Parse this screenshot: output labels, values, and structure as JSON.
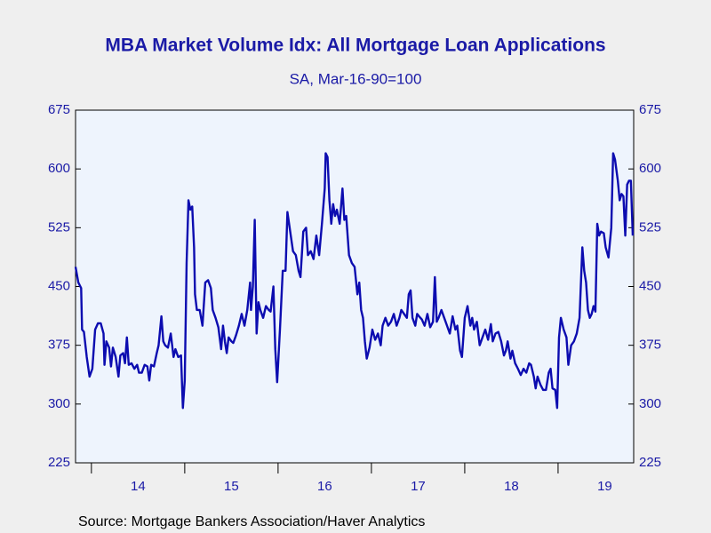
{
  "chart_data": {
    "type": "line",
    "title": "MBA Market Volume Idx: All Mortgage Loan Applications",
    "subtitle": "SA, Mar-16-90=100",
    "source": "Source:  Mortgage Bankers Association/Haver Analytics",
    "color": "#0c0cb0",
    "x": [
      2013.83,
      2013.86,
      2013.89,
      2013.9,
      2013.92,
      2013.95,
      2013.98,
      2014.01,
      2014.04,
      2014.07,
      2014.1,
      2014.13,
      2014.14,
      2014.16,
      2014.19,
      2014.21,
      2014.23,
      2014.26,
      2014.29,
      2014.31,
      2014.34,
      2014.36,
      2014.38,
      2014.4,
      2014.43,
      2014.46,
      2014.49,
      2014.51,
      2014.54,
      2014.57,
      2014.6,
      2014.62,
      2014.64,
      2014.67,
      2014.7,
      2014.72,
      2014.75,
      2014.77,
      2014.79,
      2014.82,
      2014.85,
      2014.88,
      2014.9,
      2014.93,
      2014.96,
      2014.98,
      2015.0,
      2015.02,
      2015.04,
      2015.06,
      2015.08,
      2015.1,
      2015.11,
      2015.13,
      2015.16,
      2015.19,
      2015.22,
      2015.25,
      2015.28,
      2015.3,
      2015.33,
      2015.36,
      2015.39,
      2015.41,
      2015.43,
      2015.45,
      2015.47,
      2015.5,
      2015.52,
      2015.55,
      2015.58,
      2015.61,
      2015.64,
      2015.67,
      2015.7,
      2015.71,
      2015.73,
      2015.75,
      2015.77,
      2015.79,
      2015.81,
      2015.84,
      2015.87,
      2015.9,
      2015.92,
      2015.95,
      2015.97,
      2015.99,
      2016.02,
      2016.05,
      2016.08,
      2016.1,
      2016.13,
      2016.16,
      2016.19,
      2016.22,
      2016.24,
      2016.27,
      2016.3,
      2016.32,
      2016.35,
      2016.38,
      2016.41,
      2016.44,
      2016.47,
      2016.5,
      2016.51,
      2016.53,
      2016.55,
      2016.57,
      2016.59,
      2016.61,
      2016.63,
      2016.66,
      2016.69,
      2016.71,
      2016.73,
      2016.76,
      2016.79,
      2016.82,
      2016.85,
      2016.87,
      2016.89,
      2016.91,
      2016.93,
      2016.95,
      2016.98,
      2017.01,
      2017.04,
      2017.07,
      2017.1,
      2017.12,
      2017.15,
      2017.18,
      2017.21,
      2017.24,
      2017.27,
      2017.3,
      2017.32,
      2017.35,
      2017.38,
      2017.4,
      2017.42,
      2017.44,
      2017.47,
      2017.49,
      2017.51,
      2017.54,
      2017.57,
      2017.6,
      2017.63,
      2017.66,
      2017.68,
      2017.7,
      2017.72,
      2017.75,
      2017.78,
      2017.81,
      2017.84,
      2017.87,
      2017.9,
      2017.92,
      2017.95,
      2017.97,
      2018.0,
      2018.03,
      2018.06,
      2018.08,
      2018.1,
      2018.13,
      2018.16,
      2018.19,
      2018.22,
      2018.25,
      2018.28,
      2018.3,
      2018.33,
      2018.36,
      2018.39,
      2018.42,
      2018.44,
      2018.46,
      2018.49,
      2018.51,
      2018.54,
      2018.57,
      2018.6,
      2018.63,
      2018.66,
      2018.69,
      2018.71,
      2018.74,
      2018.76,
      2018.78,
      2018.81,
      2018.84,
      2018.87,
      2018.9,
      2018.92,
      2018.94,
      2018.97,
      2018.99,
      2019.01,
      2019.03,
      2019.06,
      2019.09,
      2019.11,
      2019.14,
      2019.17,
      2019.2,
      2019.23,
      2019.26,
      2019.28,
      2019.3,
      2019.32,
      2019.34,
      2019.36,
      2019.38,
      2019.4,
      2019.42,
      2019.44,
      2019.46,
      2019.49,
      2019.51,
      2019.54,
      2019.57,
      2019.59,
      2019.61,
      2019.64,
      2019.66,
      2019.68,
      2019.7,
      2019.72,
      2019.74,
      2019.76,
      2019.78,
      2019.8
    ],
    "values": [
      475,
      455,
      448,
      395,
      392,
      360,
      335,
      345,
      395,
      403,
      403,
      390,
      350,
      380,
      372,
      348,
      372,
      360,
      335,
      362,
      365,
      352,
      385,
      350,
      352,
      345,
      350,
      340,
      340,
      350,
      348,
      330,
      350,
      348,
      365,
      375,
      412,
      380,
      375,
      372,
      390,
      360,
      370,
      360,
      362,
      295,
      330,
      480,
      560,
      548,
      552,
      500,
      440,
      420,
      420,
      400,
      455,
      458,
      448,
      420,
      410,
      398,
      370,
      400,
      380,
      365,
      385,
      380,
      378,
      388,
      400,
      415,
      400,
      420,
      455,
      420,
      450,
      535,
      390,
      430,
      420,
      410,
      425,
      420,
      418,
      450,
      370,
      328,
      395,
      470,
      470,
      545,
      520,
      495,
      490,
      470,
      462,
      520,
      525,
      490,
      495,
      485,
      515,
      490,
      530,
      575,
      620,
      615,
      560,
      530,
      555,
      540,
      548,
      530,
      575,
      535,
      540,
      490,
      480,
      475,
      440,
      455,
      420,
      410,
      380,
      358,
      372,
      395,
      382,
      390,
      375,
      400,
      410,
      400,
      405,
      415,
      400,
      410,
      420,
      415,
      410,
      440,
      445,
      410,
      400,
      415,
      412,
      408,
      400,
      415,
      398,
      405,
      462,
      405,
      410,
      420,
      410,
      400,
      390,
      412,
      395,
      400,
      368,
      360,
      410,
      425,
      400,
      410,
      395,
      405,
      375,
      385,
      395,
      382,
      402,
      380,
      390,
      392,
      380,
      362,
      368,
      380,
      358,
      368,
      352,
      345,
      337,
      345,
      340,
      352,
      350,
      335,
      320,
      335,
      325,
      318,
      318,
      340,
      345,
      320,
      318,
      295,
      385,
      410,
      395,
      385,
      350,
      375,
      380,
      390,
      410,
      500,
      470,
      455,
      420,
      410,
      415,
      425,
      418,
      530,
      515,
      520,
      518,
      500,
      487,
      525,
      620,
      612,
      585,
      560,
      568,
      565,
      515,
      580,
      585,
      585,
      515
    ],
    "xlim": [
      2013.83,
      2019.81
    ],
    "xticks": [
      {
        "value": 2014.5,
        "label": "14"
      },
      {
        "value": 2015.5,
        "label": "15"
      },
      {
        "value": 2016.5,
        "label": "16"
      },
      {
        "value": 2017.5,
        "label": "17"
      },
      {
        "value": 2018.5,
        "label": "18"
      },
      {
        "value": 2019.5,
        "label": "19"
      }
    ],
    "ylim": [
      225,
      675
    ],
    "yticks": [
      225,
      300,
      375,
      450,
      525,
      600,
      675
    ],
    "y2lim": [
      225,
      675
    ],
    "y2ticks": [
      225,
      300,
      375,
      450,
      525,
      600,
      675
    ]
  }
}
